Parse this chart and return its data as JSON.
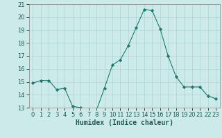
{
  "x": [
    0,
    1,
    2,
    3,
    4,
    5,
    6,
    7,
    8,
    9,
    10,
    11,
    12,
    13,
    14,
    15,
    16,
    17,
    18,
    19,
    20,
    21,
    22,
    23
  ],
  "y": [
    14.9,
    15.1,
    15.1,
    14.4,
    14.5,
    13.1,
    13.0,
    12.8,
    12.8,
    14.5,
    16.3,
    16.7,
    17.8,
    19.2,
    20.6,
    20.5,
    19.1,
    17.0,
    15.4,
    14.6,
    14.6,
    14.6,
    13.9,
    13.7
  ],
  "xlabel": "Humidex (Indice chaleur)",
  "xlim": [
    -0.5,
    23.5
  ],
  "ylim": [
    13,
    21
  ],
  "yticks": [
    13,
    14,
    15,
    16,
    17,
    18,
    19,
    20,
    21
  ],
  "xticks": [
    0,
    1,
    2,
    3,
    4,
    5,
    6,
    7,
    8,
    9,
    10,
    11,
    12,
    13,
    14,
    15,
    16,
    17,
    18,
    19,
    20,
    21,
    22,
    23
  ],
  "line_color": "#1b7b6e",
  "marker_color": "#1b7b6e",
  "bg_color": "#cceaea",
  "grid_color": "#aed4d4",
  "label_fontsize": 7,
  "tick_fontsize": 6
}
